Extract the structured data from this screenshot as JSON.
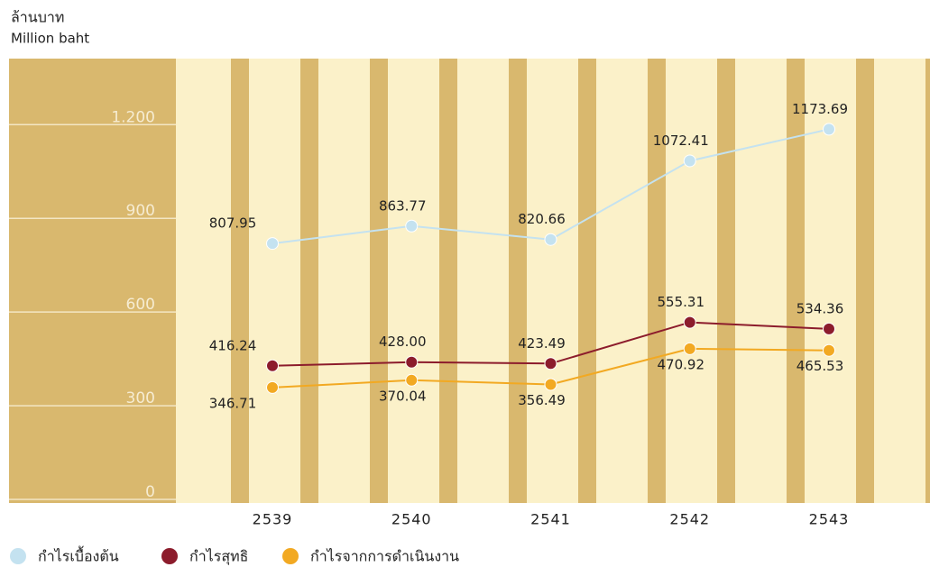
{
  "chart_data": {
    "type": "line",
    "unit_th": "ล้านบาท",
    "unit_en": "Million baht",
    "categories": [
      "2539",
      "2540",
      "2541",
      "2542",
      "2543"
    ],
    "ylim": [
      0,
      1400
    ],
    "yticks": [
      0,
      300,
      600,
      900,
      {
        "value": 1200,
        "label": "1.200"
      }
    ],
    "grid": true,
    "series": [
      {
        "name": "กำไรเบื้องต้น",
        "color": "#c4e2f0",
        "values": [
          807.95,
          863.77,
          820.66,
          1072.41,
          1173.69
        ],
        "value_labels": [
          "807.95",
          "863.77",
          "820.66",
          "1072.41",
          "1173.69"
        ]
      },
      {
        "name": "กำไรสุทธิ",
        "color": "#8c1c2c",
        "values": [
          416.24,
          428.0,
          423.49,
          555.31,
          534.36
        ],
        "value_labels": [
          "416.24",
          "428.00",
          "423.49",
          "555.31",
          "534.36"
        ]
      },
      {
        "name": "กำไรจากการดำเนินงาน",
        "color": "#f2a922",
        "values": [
          346.71,
          370.04,
          356.49,
          470.92,
          465.53
        ],
        "value_labels": [
          "346.71",
          "370.04",
          "356.49",
          "470.92",
          "465.53"
        ]
      }
    ]
  }
}
